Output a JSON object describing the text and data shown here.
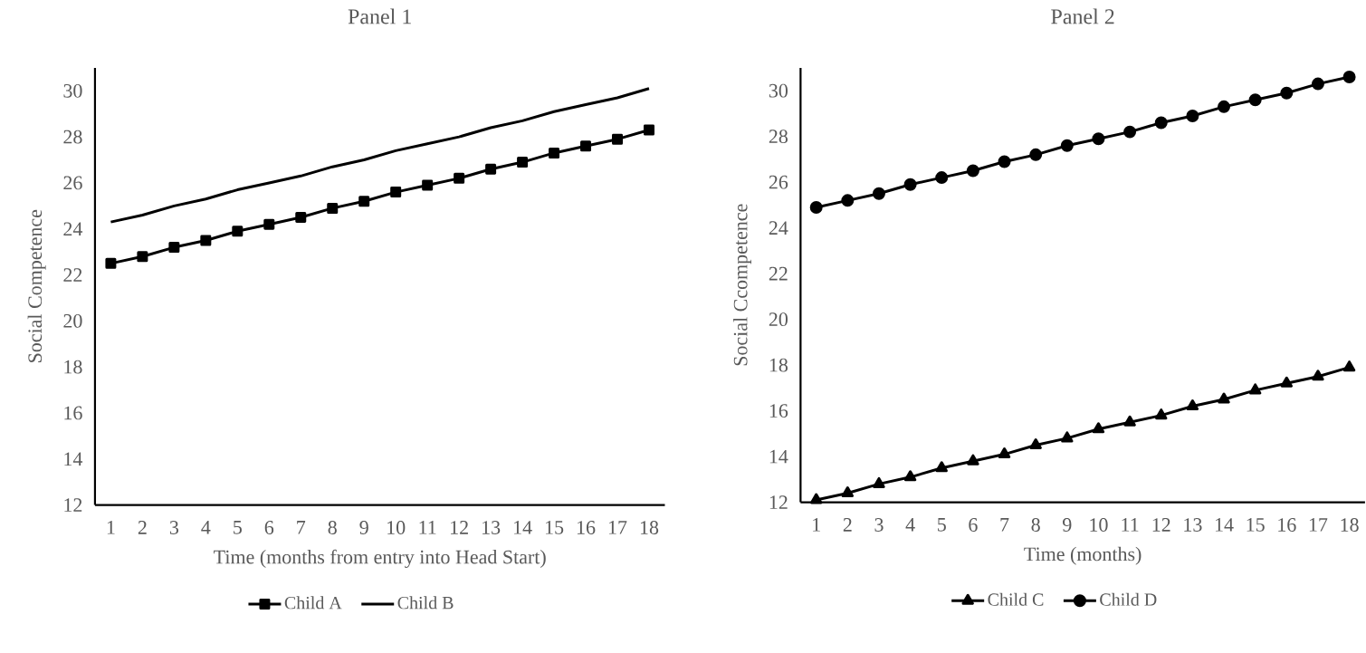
{
  "chart_data": [
    {
      "type": "line",
      "title": "Panel 1",
      "xlabel": "Time (months from entry into Head Start)",
      "ylabel": "Social Competence",
      "categories": [
        "1",
        "2",
        "3",
        "4",
        "5",
        "6",
        "7",
        "8",
        "9",
        "10",
        "11",
        "12",
        "13",
        "14",
        "15",
        "16",
        "17",
        "18"
      ],
      "ylim": [
        12,
        31
      ],
      "yticks": [
        12,
        14,
        16,
        18,
        20,
        22,
        24,
        26,
        28,
        30
      ],
      "legend": "bottom",
      "series": [
        {
          "name": "Child A",
          "color": "#000000",
          "marker": "square",
          "values": [
            22.5,
            22.8,
            23.2,
            23.5,
            23.9,
            24.2,
            24.5,
            24.9,
            25.2,
            25.6,
            25.9,
            26.2,
            26.6,
            26.9,
            27.3,
            27.6,
            27.9,
            28.3
          ]
        },
        {
          "name": "Child B",
          "color": "#000000",
          "marker": "none",
          "values": [
            24.3,
            24.6,
            25.0,
            25.3,
            25.7,
            26.0,
            26.3,
            26.7,
            27.0,
            27.4,
            27.7,
            28.0,
            28.4,
            28.7,
            29.1,
            29.4,
            29.7,
            30.1
          ]
        }
      ]
    },
    {
      "type": "line",
      "title": "Panel 2",
      "xlabel": "Time (months)",
      "ylabel": "Social Ccompetence",
      "categories": [
        "1",
        "2",
        "3",
        "4",
        "5",
        "6",
        "7",
        "8",
        "9",
        "10",
        "11",
        "12",
        "13",
        "14",
        "15",
        "16",
        "17",
        "18"
      ],
      "ylim": [
        12,
        31
      ],
      "yticks": [
        12,
        14,
        16,
        18,
        20,
        22,
        24,
        26,
        28,
        30
      ],
      "legend": "bottom",
      "series": [
        {
          "name": "Child C",
          "color": "#000000",
          "marker": "triangle",
          "values": [
            12.1,
            12.4,
            12.8,
            13.1,
            13.5,
            13.8,
            14.1,
            14.5,
            14.8,
            15.2,
            15.5,
            15.8,
            16.2,
            16.5,
            16.9,
            17.2,
            17.5,
            17.9
          ]
        },
        {
          "name": "Child D",
          "color": "#000000",
          "marker": "circle",
          "values": [
            24.9,
            25.2,
            25.5,
            25.9,
            26.2,
            26.5,
            26.9,
            27.2,
            27.6,
            27.9,
            28.2,
            28.6,
            28.9,
            29.3,
            29.6,
            29.9,
            30.3,
            30.6
          ]
        }
      ]
    }
  ]
}
